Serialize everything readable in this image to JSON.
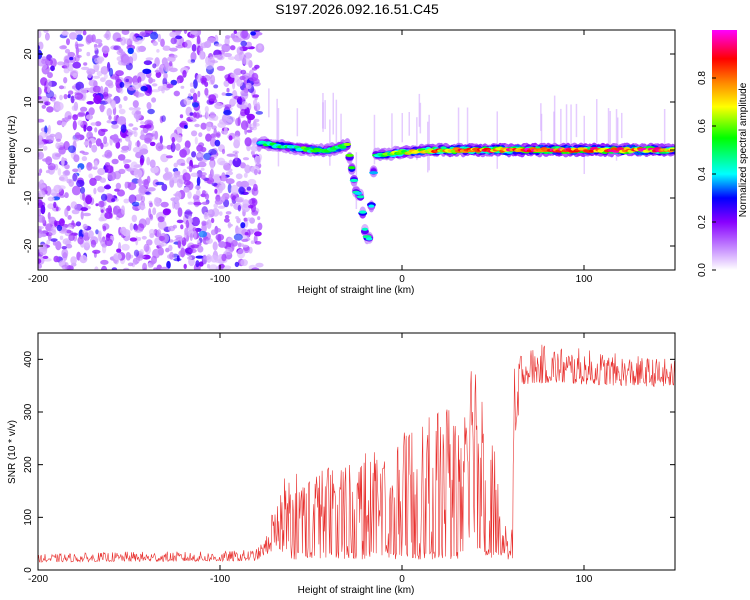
{
  "figure": {
    "title": "S197.2026.092.16.51.C45"
  },
  "chart_data": [
    {
      "type": "heatmap",
      "name": "spectrogram",
      "xlabel": "Height of straight line (km)",
      "ylabel": "Frequency (Hz)",
      "xlim": [
        -200,
        150
      ],
      "ylim": [
        -25,
        25
      ],
      "xticks": [
        -200,
        -100,
        0,
        100
      ],
      "xtick_labels": [
        "-200",
        "-100",
        "0",
        "100"
      ],
      "yticks": [
        -20,
        -10,
        0,
        10,
        20
      ],
      "ytick_labels": [
        "-20",
        "-10",
        "0",
        "10",
        "20"
      ],
      "noise_region_x": [
        -200,
        -78
      ],
      "signal_trace": {
        "x": [
          -78,
          -70,
          -60,
          -50,
          -40,
          -30,
          -25,
          -23,
          -20,
          -18,
          -15,
          -12,
          0,
          20,
          40,
          60,
          80,
          100,
          120,
          150
        ],
        "freq": [
          1.5,
          1.0,
          0.5,
          0.0,
          0.0,
          1.0,
          -9.0,
          -9.0,
          -18.0,
          -18.5,
          -1.0,
          -1.0,
          -0.5,
          0.0,
          0.0,
          0.0,
          0.0,
          0.0,
          0.0,
          0.0
        ],
        "amplitude": [
          0.5,
          0.55,
          0.55,
          0.6,
          0.6,
          0.6,
          0.5,
          0.5,
          0.45,
          0.45,
          0.5,
          0.55,
          0.7,
          0.85,
          0.9,
          0.95,
          0.95,
          0.95,
          0.95,
          0.9
        ]
      },
      "colorbar": {
        "label": "Normalized spectral amplitude",
        "range": [
          0.0,
          1.0
        ],
        "ticks": [
          0.0,
          0.2,
          0.4,
          0.6,
          0.8
        ],
        "tick_labels": [
          "0.0",
          "0.2",
          "0.4",
          "0.6",
          "0.8"
        ],
        "colors": [
          "#ffffff",
          "#cc99ff",
          "#8800ff",
          "#0000ff",
          "#00ffff",
          "#00ff00",
          "#ffff00",
          "#ff8800",
          "#ff0000",
          "#ff00ff"
        ]
      }
    },
    {
      "type": "line",
      "name": "snr",
      "xlabel": "Height of straight line (km)",
      "ylabel": "SNR (10 * v/v)",
      "xlim": [
        -200,
        150
      ],
      "ylim": [
        0,
        450
      ],
      "xticks": [
        -200,
        -100,
        0,
        100
      ],
      "xtick_labels": [
        "-200",
        "-100",
        "0",
        "100"
      ],
      "yticks": [
        0,
        100,
        200,
        300,
        400
      ],
      "ytick_labels": [
        "0",
        "100",
        "200",
        "300",
        "400"
      ],
      "color": "#e8302e",
      "envelope": {
        "x": [
          -200,
          -150,
          -100,
          -80,
          -75,
          -70,
          -65,
          -60,
          -50,
          -40,
          -30,
          -20,
          -10,
          0,
          10,
          20,
          30,
          35,
          40,
          45,
          50,
          55,
          60,
          62,
          65,
          80,
          100,
          120,
          150
        ],
        "low": [
          10,
          10,
          10,
          10,
          20,
          40,
          30,
          20,
          20,
          20,
          20,
          20,
          20,
          20,
          20,
          20,
          20,
          30,
          40,
          30,
          20,
          20,
          20,
          20,
          330,
          330,
          330,
          330,
          330
        ],
        "high": [
          30,
          35,
          35,
          40,
          60,
          130,
          180,
          190,
          180,
          200,
          210,
          230,
          240,
          260,
          280,
          300,
          330,
          400,
          420,
          350,
          260,
          100,
          60,
          420,
          420,
          430,
          420,
          410,
          400
        ]
      }
    }
  ]
}
